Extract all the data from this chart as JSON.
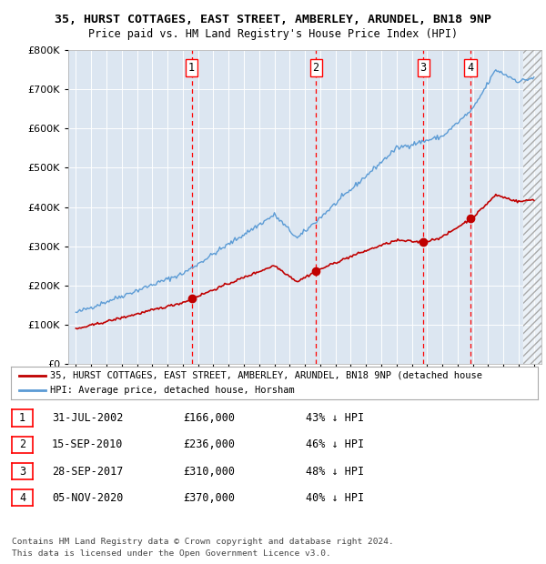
{
  "title1": "35, HURST COTTAGES, EAST STREET, AMBERLEY, ARUNDEL, BN18 9NP",
  "title2": "Price paid vs. HM Land Registry's House Price Index (HPI)",
  "background_color": "#dce6f1",
  "sale_dates_num": [
    2002.58,
    2010.71,
    2017.75,
    2020.84
  ],
  "sale_prices": [
    166000,
    236000,
    310000,
    370000
  ],
  "sale_labels": [
    "1",
    "2",
    "3",
    "4"
  ],
  "legend_line1": "35, HURST COTTAGES, EAST STREET, AMBERLEY, ARUNDEL, BN18 9NP (detached house",
  "legend_line2": "HPI: Average price, detached house, Horsham",
  "table_rows": [
    [
      "1",
      "31-JUL-2002",
      "£166,000",
      "43% ↓ HPI"
    ],
    [
      "2",
      "15-SEP-2010",
      "£236,000",
      "46% ↓ HPI"
    ],
    [
      "3",
      "28-SEP-2017",
      "£310,000",
      "48% ↓ HPI"
    ],
    [
      "4",
      "05-NOV-2020",
      "£370,000",
      "40% ↓ HPI"
    ]
  ],
  "footer1": "Contains HM Land Registry data © Crown copyright and database right 2024.",
  "footer2": "This data is licensed under the Open Government Licence v3.0.",
  "hpi_line_color": "#5b9bd5",
  "price_line_color": "#c00000",
  "dashed_line_color": "#ff0000",
  "ylim": [
    0,
    800000
  ],
  "yticks": [
    0,
    100000,
    200000,
    300000,
    400000,
    500000,
    600000,
    700000,
    800000
  ],
  "xlim_start": 1994.5,
  "xlim_end": 2025.5
}
